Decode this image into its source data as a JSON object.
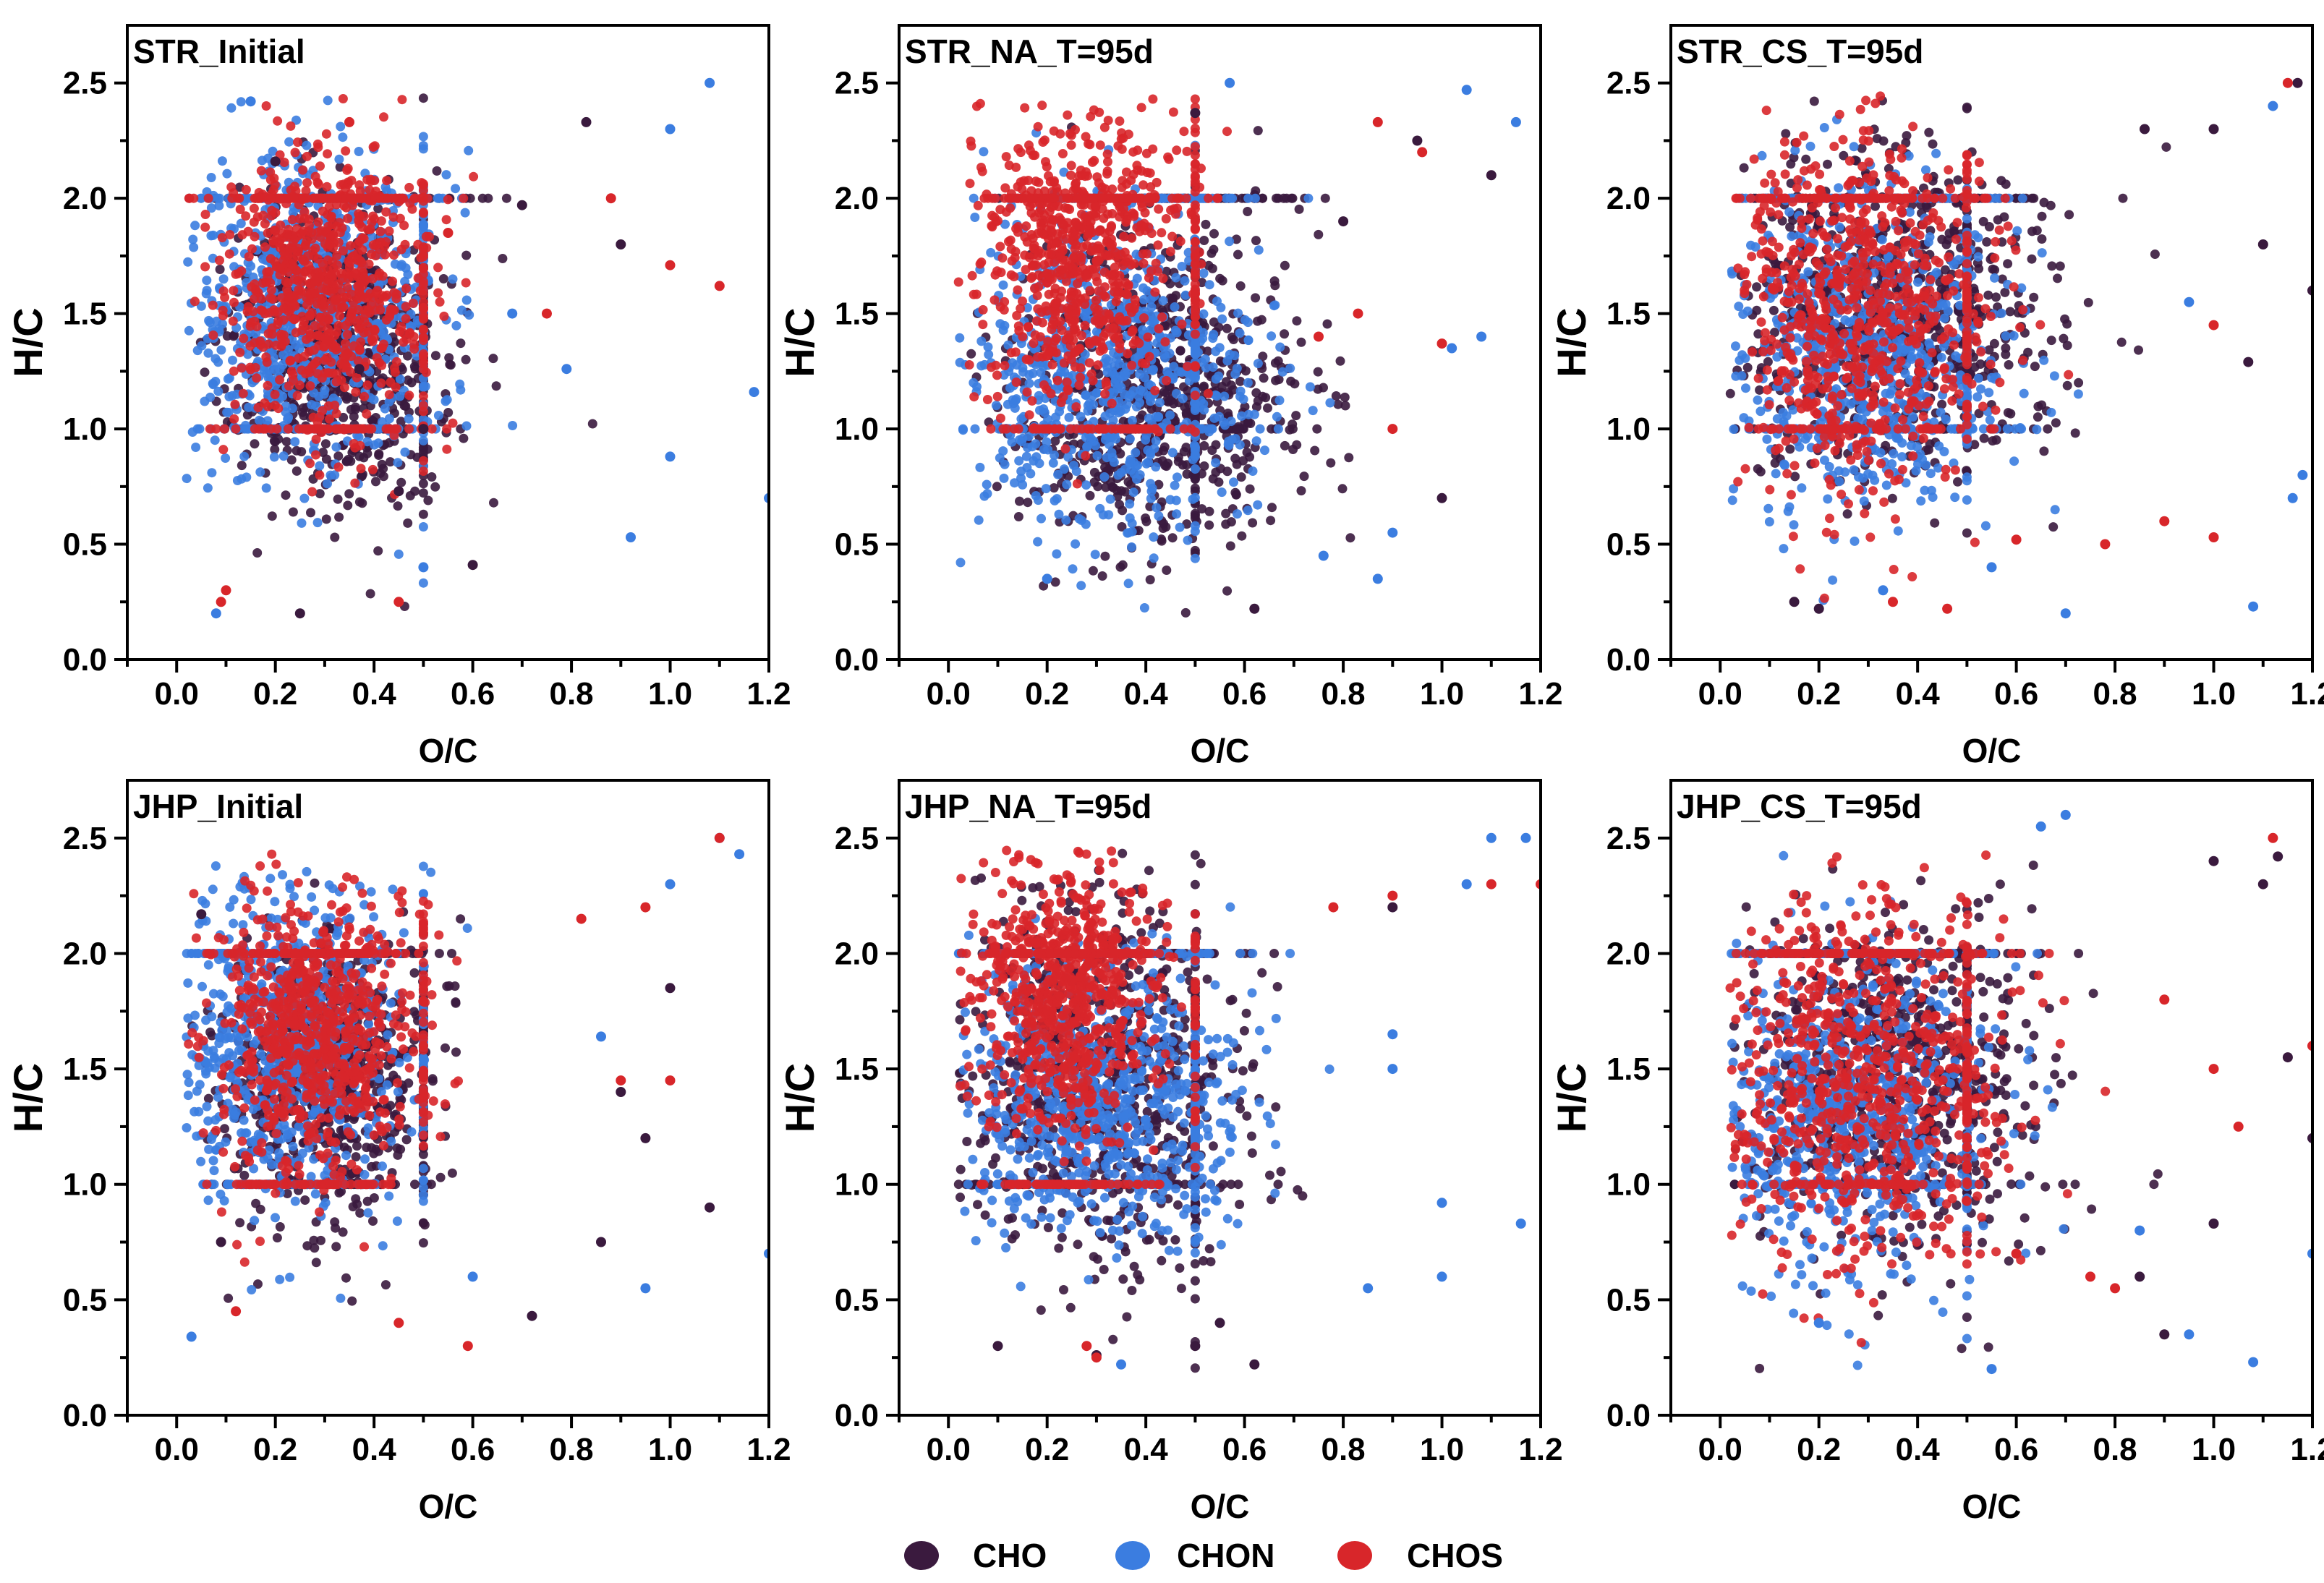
{
  "legend": [
    {
      "label": "CHO",
      "color": "#3a1a3e"
    },
    {
      "label": "CHON",
      "color": "#3b7de0"
    },
    {
      "label": "CHOS",
      "color": "#d8262a"
    }
  ],
  "chart_data": [
    {
      "type": "scatter",
      "title": "STR_Initial",
      "xlabel": "O/C",
      "ylabel": "H/C",
      "xlim": [
        -0.1,
        1.2
      ],
      "ylim": [
        0,
        2.75
      ],
      "xticks": [
        0.0,
        0.2,
        0.4,
        0.6,
        0.8,
        1.0,
        1.2
      ],
      "yticks": [
        0.0,
        0.5,
        1.0,
        1.5,
        2.0,
        2.5
      ],
      "clusters": {
        "CHO": {
          "cx": 0.32,
          "cy": 1.35,
          "sx": 0.11,
          "sy": 0.32
        },
        "CHON": {
          "cx": 0.27,
          "cy": 1.5,
          "sx": 0.13,
          "sy": 0.36
        },
        "CHOS": {
          "cx": 0.3,
          "cy": 1.6,
          "sx": 0.1,
          "sy": 0.3
        }
      },
      "series": [
        {
          "name": "CHO",
          "x": [
            0.5,
            0.83,
            0.7,
            0.45,
            0.25,
            0.2,
            0.6,
            0.37,
            0.9
          ],
          "y": [
            1.0,
            2.33,
            1.97,
            0.73,
            0.2,
            2.16,
            0.41,
            1.26,
            1.8
          ]
        },
        {
          "name": "CHON",
          "x": [
            1.08,
            1.0,
            1.17,
            1.2,
            0.92,
            0.15,
            0.08,
            0.68,
            0.5,
            1.0,
            0.79
          ],
          "y": [
            2.5,
            2.3,
            1.16,
            0.7,
            0.53,
            2.42,
            0.2,
            1.5,
            0.4,
            0.88,
            1.26
          ]
        },
        {
          "name": "CHOS",
          "x": [
            0.1,
            0.09,
            0.35,
            0.55,
            1.0,
            1.1,
            0.75,
            0.45,
            0.88
          ],
          "y": [
            0.3,
            0.25,
            2.33,
            1.85,
            1.71,
            1.62,
            1.5,
            0.25,
            2.0
          ]
        }
      ]
    },
    {
      "type": "scatter",
      "title": "STR_NA_T=95d",
      "xlabel": "O/C",
      "ylabel": "H/C",
      "xlim": [
        -0.1,
        1.2
      ],
      "ylim": [
        0,
        2.75
      ],
      "xticks": [
        0.0,
        0.2,
        0.4,
        0.6,
        0.8,
        1.0,
        1.2
      ],
      "yticks": [
        0.0,
        0.5,
        1.0,
        1.5,
        2.0,
        2.5
      ],
      "clusters": {
        "CHO": {
          "cx": 0.42,
          "cy": 1.15,
          "sx": 0.15,
          "sy": 0.35
        },
        "CHON": {
          "cx": 0.32,
          "cy": 1.25,
          "sx": 0.15,
          "sy": 0.35
        },
        "CHOS": {
          "cx": 0.27,
          "cy": 1.75,
          "sx": 0.1,
          "sy": 0.3
        }
      },
      "series": [
        {
          "name": "CHO",
          "x": [
            0.8,
            0.95,
            1.1,
            0.62,
            1.0,
            0.5
          ],
          "y": [
            1.9,
            2.25,
            2.1,
            0.22,
            0.7,
            2.37
          ]
        },
        {
          "name": "CHON",
          "x": [
            0.57,
            1.05,
            1.15,
            1.08,
            0.76,
            0.87,
            0.9,
            1.02,
            0.2
          ],
          "y": [
            2.5,
            2.47,
            2.33,
            1.4,
            0.45,
            0.35,
            0.55,
            1.35,
            0.35
          ]
        },
        {
          "name": "CHOS",
          "x": [
            0.87,
            0.96,
            1.0,
            0.83,
            0.75,
            0.9
          ],
          "y": [
            2.33,
            2.2,
            1.37,
            1.5,
            1.4,
            1.0
          ]
        }
      ]
    },
    {
      "type": "scatter",
      "title": "STR_CS_T=95d",
      "xlabel": "O/C",
      "ylabel": "H/C",
      "xlim": [
        -0.1,
        1.2
      ],
      "ylim": [
        0,
        2.75
      ],
      "xticks": [
        0.0,
        0.2,
        0.4,
        0.6,
        0.8,
        1.0,
        1.2
      ],
      "yticks": [
        0.0,
        0.5,
        1.0,
        1.5,
        2.0,
        2.5
      ],
      "clusters": {
        "CHO": {
          "cx": 0.35,
          "cy": 1.5,
          "sx": 0.16,
          "sy": 0.35
        },
        "CHON": {
          "cx": 0.28,
          "cy": 1.35,
          "sx": 0.14,
          "sy": 0.35
        },
        "CHOS": {
          "cx": 0.27,
          "cy": 1.5,
          "sx": 0.13,
          "sy": 0.38
        }
      },
      "series": [
        {
          "name": "CHO",
          "x": [
            1.17,
            1.2,
            1.0,
            1.1,
            0.86,
            1.07,
            0.2,
            0.15
          ],
          "y": [
            2.5,
            1.6,
            2.3,
            1.8,
            2.3,
            1.29,
            0.22,
            0.25
          ]
        },
        {
          "name": "CHON",
          "x": [
            1.12,
            1.08,
            1.18,
            0.7,
            0.95,
            0.55,
            0.33,
            1.16
          ],
          "y": [
            2.4,
            0.23,
            0.8,
            0.2,
            1.55,
            0.4,
            0.3,
            0.7
          ]
        },
        {
          "name": "CHOS",
          "x": [
            1.15,
            1.0,
            0.78,
            0.9,
            0.6,
            1.0,
            0.46,
            0.35
          ],
          "y": [
            2.5,
            1.45,
            0.5,
            0.6,
            0.52,
            0.53,
            0.22,
            0.25
          ]
        }
      ]
    },
    {
      "type": "scatter",
      "title": "JHP_Initial",
      "xlabel": "O/C",
      "ylabel": "H/C",
      "xlim": [
        -0.1,
        1.2
      ],
      "ylim": [
        0,
        2.75
      ],
      "xticks": [
        0.0,
        0.2,
        0.4,
        0.6,
        0.8,
        1.0,
        1.2
      ],
      "yticks": [
        0.0,
        0.5,
        1.0,
        1.5,
        2.0,
        2.5
      ],
      "clusters": {
        "CHO": {
          "cx": 0.3,
          "cy": 1.45,
          "sx": 0.1,
          "sy": 0.3
        },
        "CHON": {
          "cx": 0.22,
          "cy": 1.6,
          "sx": 0.12,
          "sy": 0.35
        },
        "CHOS": {
          "cx": 0.28,
          "cy": 1.65,
          "sx": 0.1,
          "sy": 0.3
        }
      },
      "series": [
        {
          "name": "CHO",
          "x": [
            0.05,
            0.72,
            0.9,
            1.0,
            0.86,
            0.09,
            1.08,
            0.95
          ],
          "y": [
            2.17,
            0.43,
            1.4,
            1.85,
            0.75,
            0.75,
            0.9,
            1.2
          ]
        },
        {
          "name": "CHON",
          "x": [
            1.1,
            1.14,
            1.0,
            1.2,
            0.86,
            0.6,
            0.95,
            0.03
          ],
          "y": [
            2.5,
            2.43,
            2.3,
            0.7,
            1.64,
            0.6,
            0.55,
            0.34
          ]
        },
        {
          "name": "CHOS",
          "x": [
            1.1,
            0.95,
            0.59,
            0.45,
            0.12,
            0.9,
            0.82,
            1.0
          ],
          "y": [
            2.5,
            2.2,
            0.3,
            0.4,
            0.45,
            1.45,
            2.15,
            1.45
          ]
        }
      ]
    },
    {
      "type": "scatter",
      "title": "JHP_NA_T=95d",
      "xlabel": "O/C",
      "ylabel": "H/C",
      "xlim": [
        -0.1,
        1.2
      ],
      "ylim": [
        0,
        2.75
      ],
      "xticks": [
        0.0,
        0.2,
        0.4,
        0.6,
        0.8,
        1.0,
        1.2
      ],
      "yticks": [
        0.0,
        0.5,
        1.0,
        1.5,
        2.0,
        2.5
      ],
      "clusters": {
        "CHO": {
          "cx": 0.3,
          "cy": 1.45,
          "sx": 0.15,
          "sy": 0.4
        },
        "CHON": {
          "cx": 0.3,
          "cy": 1.35,
          "sx": 0.14,
          "sy": 0.3
        },
        "CHOS": {
          "cx": 0.23,
          "cy": 1.8,
          "sx": 0.09,
          "sy": 0.3
        }
      },
      "series": [
        {
          "name": "CHO",
          "x": [
            0.62,
            0.3,
            0.5,
            0.9,
            0.1,
            0.55
          ],
          "y": [
            0.22,
            0.26,
            0.3,
            2.2,
            0.3,
            0.4
          ]
        },
        {
          "name": "CHON",
          "x": [
            1.1,
            1.17,
            1.05,
            1.0,
            1.16,
            0.9,
            0.85,
            0.35,
            1.0,
            0.9
          ],
          "y": [
            2.5,
            2.5,
            2.3,
            0.92,
            0.83,
            1.5,
            0.55,
            0.22,
            0.6,
            1.65
          ]
        },
        {
          "name": "CHOS",
          "x": [
            1.2,
            1.1,
            0.9,
            0.78,
            0.3,
            0.28
          ],
          "y": [
            2.3,
            2.3,
            2.25,
            2.2,
            0.25,
            0.3
          ]
        }
      ]
    },
    {
      "type": "scatter",
      "title": "JHP_CS_T=95d",
      "xlabel": "O/C",
      "ylabel": "H/C",
      "xlim": [
        -0.1,
        1.2
      ],
      "ylim": [
        0,
        2.75
      ],
      "xticks": [
        0.0,
        0.2,
        0.4,
        0.6,
        0.8,
        1.0,
        1.2
      ],
      "yticks": [
        0.0,
        0.5,
        1.0,
        1.5,
        2.0,
        2.5
      ],
      "clusters": {
        "CHO": {
          "cx": 0.35,
          "cy": 1.45,
          "sx": 0.15,
          "sy": 0.35
        },
        "CHON": {
          "cx": 0.25,
          "cy": 1.3,
          "sx": 0.14,
          "sy": 0.35
        },
        "CHOS": {
          "cx": 0.28,
          "cy": 1.45,
          "sx": 0.14,
          "sy": 0.4
        }
      },
      "series": [
        {
          "name": "CHO",
          "x": [
            1.13,
            1.0,
            1.1,
            1.2,
            1.15,
            1.0,
            0.9,
            0.85
          ],
          "y": [
            2.42,
            2.4,
            2.3,
            1.2,
            1.55,
            0.83,
            0.35,
            0.6
          ]
        },
        {
          "name": "CHON",
          "x": [
            0.7,
            0.65,
            1.08,
            1.2,
            0.85,
            0.55,
            0.95,
            0.2
          ],
          "y": [
            2.6,
            2.55,
            0.23,
            0.7,
            0.8,
            0.2,
            0.35,
            0.4
          ]
        },
        {
          "name": "CHOS",
          "x": [
            1.12,
            1.2,
            1.0,
            0.8,
            0.9,
            1.05,
            0.75,
            0.6
          ],
          "y": [
            2.5,
            1.6,
            1.5,
            0.55,
            1.8,
            1.25,
            0.6,
            0.7
          ]
        }
      ]
    }
  ]
}
